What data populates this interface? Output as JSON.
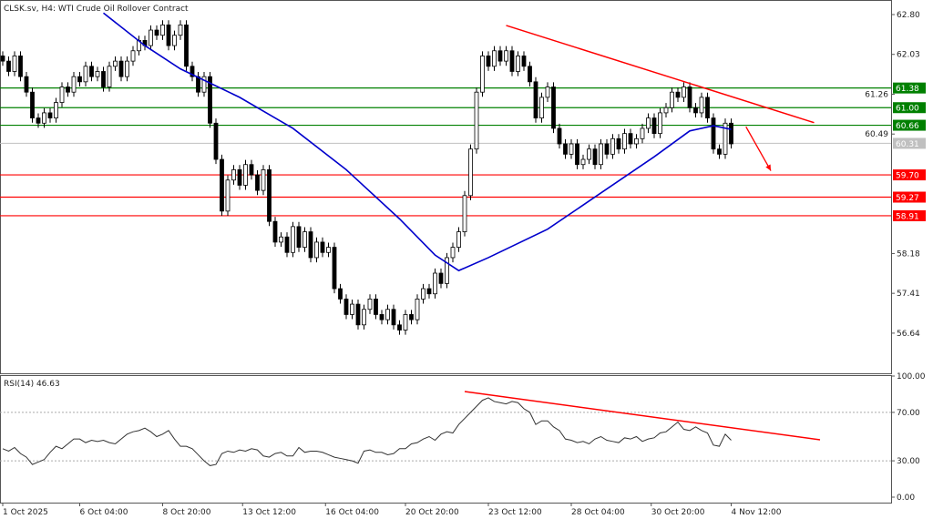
{
  "header": {
    "title": "CLSK.sv, H4:  WTI Crude Oil Rollover Contract"
  },
  "chart_data": [
    {
      "type": "candlestick",
      "symbol": "CLSK.sv",
      "timeframe": "H4",
      "ylim": [
        56.2,
        63.0
      ],
      "price_ticks": [
        "62.80",
        "62.03",
        "61.26",
        "60.49",
        "58.18",
        "57.41",
        "56.64"
      ],
      "x_labels": [
        {
          "label": "1 Oct 2025",
          "index": 0
        },
        {
          "label": "6 Oct 04:00",
          "index": 13
        },
        {
          "label": "8 Oct 20:00",
          "index": 27
        },
        {
          "label": "13 Oct 12:00",
          "index": 40.5
        },
        {
          "label": "16 Oct 04:00",
          "index": 54.5
        },
        {
          "label": "20 Oct 20:00",
          "index": 68
        },
        {
          "label": "23 Oct 12:00",
          "index": 82
        },
        {
          "label": "28 Oct 04:00",
          "index": 96
        },
        {
          "label": "30 Oct 20:00",
          "index": 109.5
        },
        {
          "label": "4 Nov 12:00",
          "index": 123
        }
      ],
      "closes": [
        61.9,
        61.7,
        62.0,
        61.6,
        61.3,
        60.8,
        60.7,
        60.9,
        60.8,
        61.1,
        61.4,
        61.3,
        61.6,
        61.5,
        61.8,
        61.6,
        61.7,
        61.4,
        61.8,
        61.9,
        61.6,
        61.9,
        62.1,
        62.3,
        62.2,
        62.5,
        62.4,
        62.6,
        62.2,
        62.4,
        62.6,
        61.8,
        61.6,
        61.3,
        61.6,
        60.7,
        60.0,
        59.0,
        59.6,
        59.8,
        59.5,
        59.9,
        59.7,
        59.4,
        59.8,
        58.8,
        58.4,
        58.5,
        58.2,
        58.7,
        58.3,
        58.6,
        58.1,
        58.4,
        58.2,
        58.3,
        57.5,
        57.3,
        57.0,
        57.2,
        56.8,
        57.1,
        57.3,
        57.0,
        56.9,
        57.1,
        56.8,
        56.7,
        57.0,
        56.9,
        57.3,
        57.5,
        57.4,
        57.8,
        57.6,
        58.1,
        58.3,
        58.6,
        59.3,
        60.2,
        61.3,
        62.0,
        61.8,
        62.1,
        61.9,
        62.1,
        61.7,
        62.0,
        61.8,
        61.5,
        60.8,
        61.2,
        61.4,
        60.6,
        60.3,
        60.1,
        60.3,
        59.9,
        60.0,
        60.2,
        59.9,
        60.3,
        60.1,
        60.4,
        60.2,
        60.5,
        60.3,
        60.4,
        60.6,
        60.8,
        60.5,
        60.9,
        61.0,
        61.3,
        61.2,
        61.4,
        61.0,
        60.9,
        61.2,
        60.8,
        60.2,
        60.1,
        60.7,
        60.3
      ],
      "first_open": 62.0,
      "moving_average": {
        "color": "#0000cc",
        "points": [
          [
            17,
            62.83
          ],
          [
            24,
            62.2
          ],
          [
            30,
            61.75
          ],
          [
            40,
            61.2
          ],
          [
            49,
            60.6
          ],
          [
            58,
            59.8
          ],
          [
            67,
            58.85
          ],
          [
            73,
            58.15
          ],
          [
            77,
            57.85
          ],
          [
            82,
            58.1
          ],
          [
            92,
            58.65
          ],
          [
            101,
            59.35
          ],
          [
            110,
            60.05
          ],
          [
            116,
            60.55
          ],
          [
            120,
            60.65
          ],
          [
            123,
            60.58
          ]
        ]
      },
      "current_price": {
        "value": "60.31",
        "color": "#c0c0c0"
      },
      "levels": [
        {
          "value": "61.38",
          "color": "#008000"
        },
        {
          "value": "61.00",
          "color": "#008000"
        },
        {
          "value": "60.66",
          "color": "#008000"
        },
        {
          "value": "59.70",
          "color": "#ff0000"
        },
        {
          "value": "59.27",
          "color": "#ff0000"
        },
        {
          "value": "58.91",
          "color": "#ff0000"
        }
      ],
      "trendline": {
        "color": "#ff0000",
        "from": [
          85,
          62.59
        ],
        "to": [
          137,
          60.71
        ]
      },
      "arrow": {
        "color": "#ff0000",
        "from": [
          125.5,
          60.63
        ],
        "to": [
          129.7,
          59.78
        ]
      },
      "colors": {
        "bull": "#ffffff",
        "bear": "#000000",
        "outline": "#000000"
      }
    },
    {
      "type": "line",
      "label": "RSI(14) 46.63",
      "ylim": [
        0,
        100
      ],
      "y_ticks": [
        "100.00",
        "70.00",
        "30.00",
        "0.00"
      ],
      "levels": [
        70,
        30
      ],
      "values": [
        40,
        38,
        41,
        36,
        33,
        27,
        29,
        31,
        37,
        42,
        40,
        44,
        48,
        48,
        45,
        47,
        46,
        47,
        45,
        44,
        48,
        52,
        54,
        55,
        57,
        54,
        50,
        52,
        55,
        48,
        42,
        42,
        40,
        35,
        30,
        26,
        27,
        36,
        38,
        37,
        39,
        38,
        40,
        39,
        34,
        33,
        36,
        37,
        34,
        34,
        41,
        37,
        38,
        38,
        37,
        35,
        33,
        32,
        31,
        30,
        28,
        38,
        39,
        37,
        37,
        35,
        36,
        40,
        40,
        44,
        45,
        48,
        50,
        47,
        52,
        54,
        53,
        60,
        65,
        70,
        75,
        80,
        82,
        79,
        78,
        77,
        79,
        78,
        73,
        70,
        60,
        63,
        63,
        58,
        55,
        48,
        47,
        45,
        46,
        44,
        48,
        50,
        47,
        46,
        45,
        49,
        48,
        50,
        46,
        48,
        49,
        53,
        54,
        58,
        62,
        56,
        55,
        58,
        55,
        53,
        43,
        42,
        52,
        47
      ],
      "trendline": {
        "color": "#ff0000",
        "from": [
          78,
          87.2
        ],
        "to": [
          138,
          47.4
        ]
      }
    }
  ]
}
